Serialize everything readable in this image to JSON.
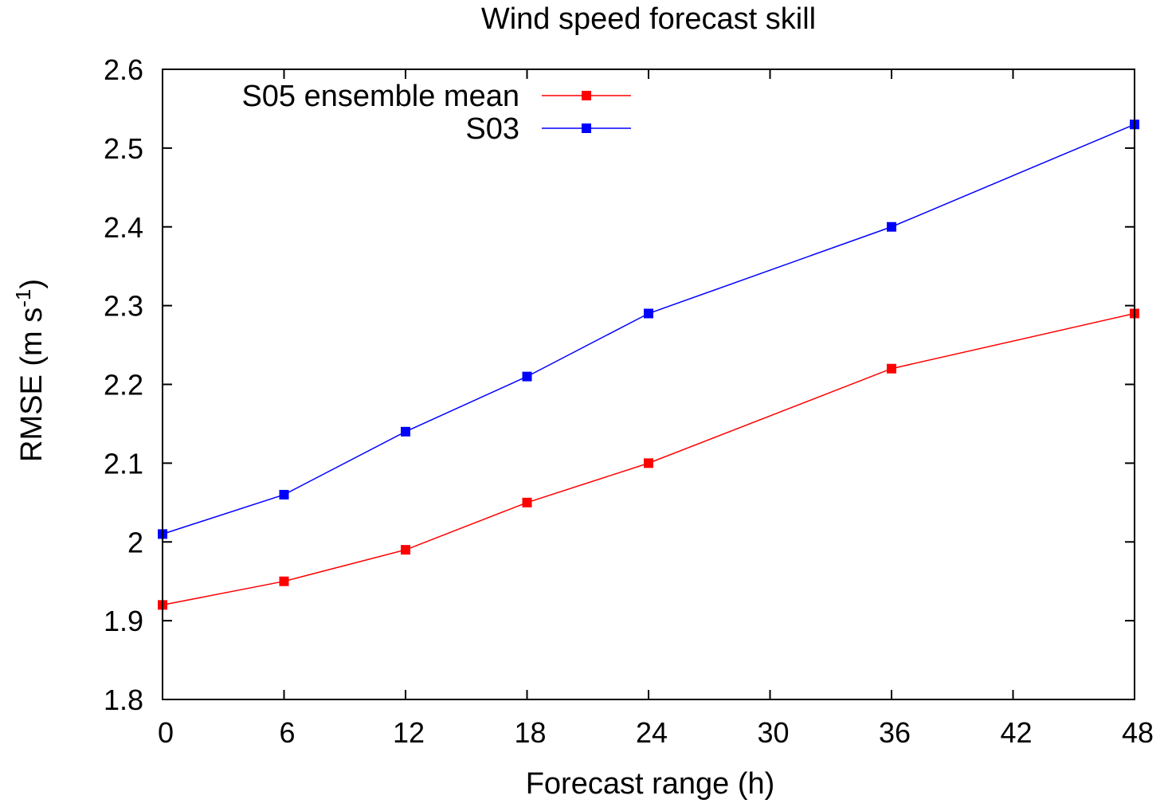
{
  "chart_data": {
    "type": "line",
    "title": "Wind speed forecast skill",
    "xlabel": "Forecast range (h)",
    "ylabel": {
      "main": "RMSE (m s",
      "sup": "-1",
      "end": ")"
    },
    "xlim": [
      0,
      48
    ],
    "ylim": [
      1.8,
      2.6
    ],
    "xticks": [
      0,
      6,
      12,
      18,
      24,
      30,
      36,
      42,
      48
    ],
    "yticks": [
      1.8,
      1.9,
      2.0,
      2.1,
      2.2,
      2.3,
      2.4,
      2.5,
      2.6
    ],
    "ytick_labels": [
      "1.8",
      "1.9",
      "2",
      "2.1",
      "2.2",
      "2.3",
      "2.4",
      "2.5",
      "2.6"
    ],
    "grid": false,
    "legend_position": "top-left",
    "x": [
      0,
      6,
      12,
      18,
      24,
      36,
      48
    ],
    "series": [
      {
        "name": "S05 ensemble mean",
        "color": "#ff0000",
        "values": [
          1.92,
          1.95,
          1.99,
          2.05,
          2.1,
          2.22,
          2.29
        ]
      },
      {
        "name": "S03",
        "color": "#0000ff",
        "values": [
          2.01,
          2.06,
          2.14,
          2.21,
          2.29,
          2.4,
          2.53
        ]
      }
    ]
  }
}
